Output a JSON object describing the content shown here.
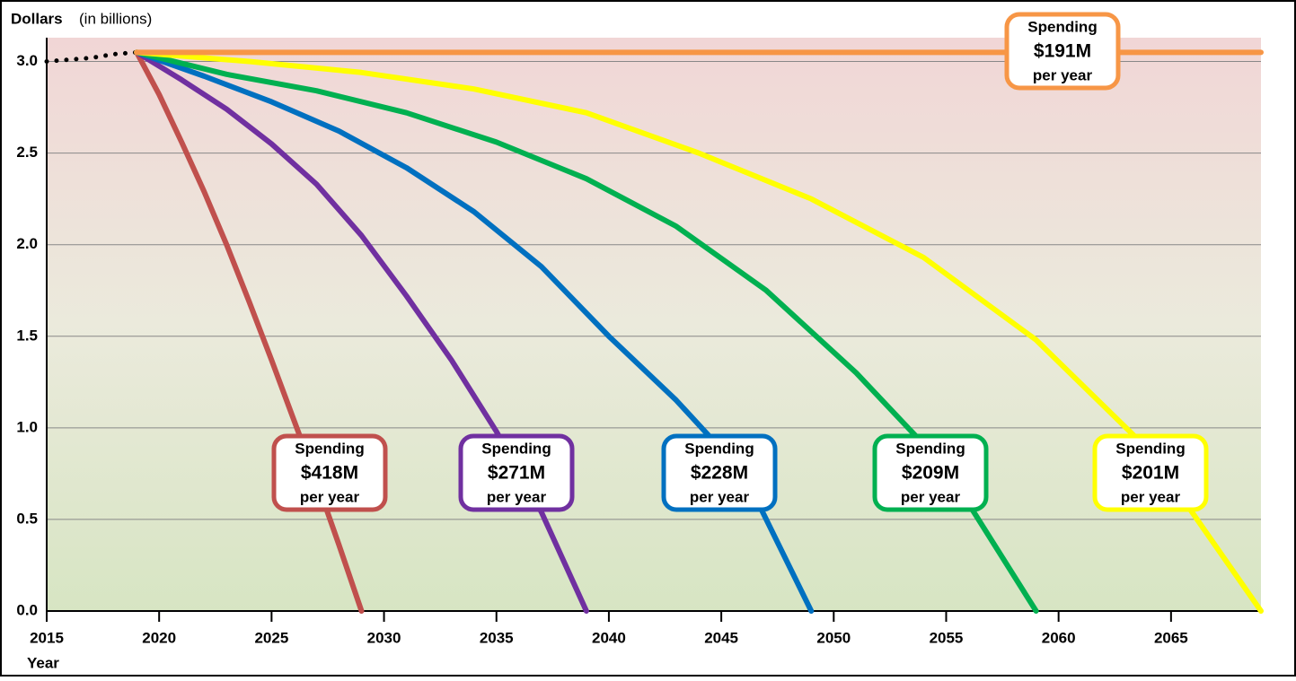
{
  "chart_data": {
    "type": "line",
    "y_label": "Dollars",
    "y_label_unit": "(in billions)",
    "x_label": "Year",
    "xlim": [
      2015,
      2069
    ],
    "ylim": [
      0,
      3.13
    ],
    "xticks": [
      2015,
      2020,
      2025,
      2030,
      2035,
      2040,
      2045,
      2050,
      2055,
      2060,
      2065
    ],
    "yticks": [
      {
        "value": 0,
        "label": "0.0"
      },
      0.5,
      {
        "value": 1,
        "label": "1.0"
      },
      1.5,
      {
        "value": 2,
        "label": "2.0"
      },
      2.5,
      {
        "value": 3,
        "label": "3.0"
      }
    ],
    "grid": true,
    "series": [
      {
        "color": "#000000",
        "dash": "dotted",
        "x": [
          2015,
          2016,
          2017,
          2018,
          2019
        ],
        "values": [
          3.0,
          3.01,
          3.02,
          3.04,
          3.05
        ]
      },
      {
        "color": "#c0504d",
        "label": [
          "Spending",
          "$418M",
          "per year"
        ],
        "x": [
          2019,
          2020,
          2021,
          2022,
          2023,
          2024,
          2025,
          2026,
          2027,
          2028,
          2029
        ],
        "values": [
          3.05,
          2.82,
          2.56,
          2.29,
          2.0,
          1.69,
          1.37,
          1.04,
          0.71,
          0.36,
          0.0
        ]
      },
      {
        "color": "#7030a0",
        "label": [
          "Spending",
          "$271M",
          "per year"
        ],
        "x": [
          2019,
          2021,
          2023,
          2025,
          2027,
          2029,
          2031,
          2033,
          2035,
          2037,
          2039
        ],
        "values": [
          3.05,
          2.9,
          2.74,
          2.55,
          2.33,
          2.05,
          1.72,
          1.37,
          0.98,
          0.54,
          0.0
        ]
      },
      {
        "color": "#0070c0",
        "label": [
          "Spending",
          "$228M",
          "per year"
        ],
        "x": [
          2019,
          2022,
          2025,
          2028,
          2031,
          2034,
          2037,
          2040,
          2043,
          2046,
          2049
        ],
        "values": [
          3.05,
          2.92,
          2.78,
          2.62,
          2.42,
          2.18,
          1.88,
          1.5,
          1.15,
          0.75,
          0.0
        ]
      },
      {
        "color": "#00b050",
        "label": [
          "Spending",
          "$209M",
          "per year"
        ],
        "x": [
          2019,
          2023,
          2027,
          2031,
          2035,
          2039,
          2043,
          2047,
          2051,
          2055,
          2059
        ],
        "values": [
          3.05,
          2.93,
          2.84,
          2.72,
          2.56,
          2.36,
          2.1,
          1.75,
          1.3,
          0.78,
          0.0
        ]
      },
      {
        "color": "#ffff00",
        "label": [
          "Spending",
          "$201M",
          "per year"
        ],
        "x": [
          2019,
          2024,
          2029,
          2034,
          2039,
          2044,
          2049,
          2054,
          2059,
          2064,
          2069
        ],
        "values": [
          3.05,
          3.0,
          2.94,
          2.85,
          2.72,
          2.5,
          2.25,
          1.93,
          1.48,
          0.88,
          0.0
        ]
      },
      {
        "color": "#f79646",
        "label": [
          "Spending",
          "$191M",
          "per year"
        ],
        "x": [
          2019,
          2069
        ],
        "values": [
          3.05,
          3.05
        ]
      }
    ]
  }
}
